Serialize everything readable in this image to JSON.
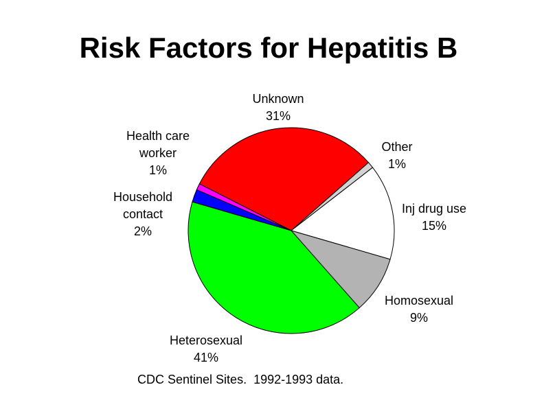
{
  "chart_data": {
    "type": "pie",
    "title": "Risk Factors for Hepatitis B",
    "categories": [
      "Unknown",
      "Other",
      "Inj drug use",
      "Homosexual",
      "Heterosexual",
      "Household contact",
      "Health care worker"
    ],
    "values": [
      31,
      1,
      15,
      9,
      41,
      2,
      1
    ],
    "value_labels": [
      "31%",
      "1%",
      "15%",
      "9%",
      "41%",
      "2%",
      "1%"
    ],
    "colors": [
      "#ff0000",
      "#d3d3d3",
      "#ffffff",
      "#b3b3b3",
      "#00ff00",
      "#0000ff",
      "#ff00ff"
    ],
    "caption": "CDC Sentinel Sites.  1992-1993 data."
  }
}
